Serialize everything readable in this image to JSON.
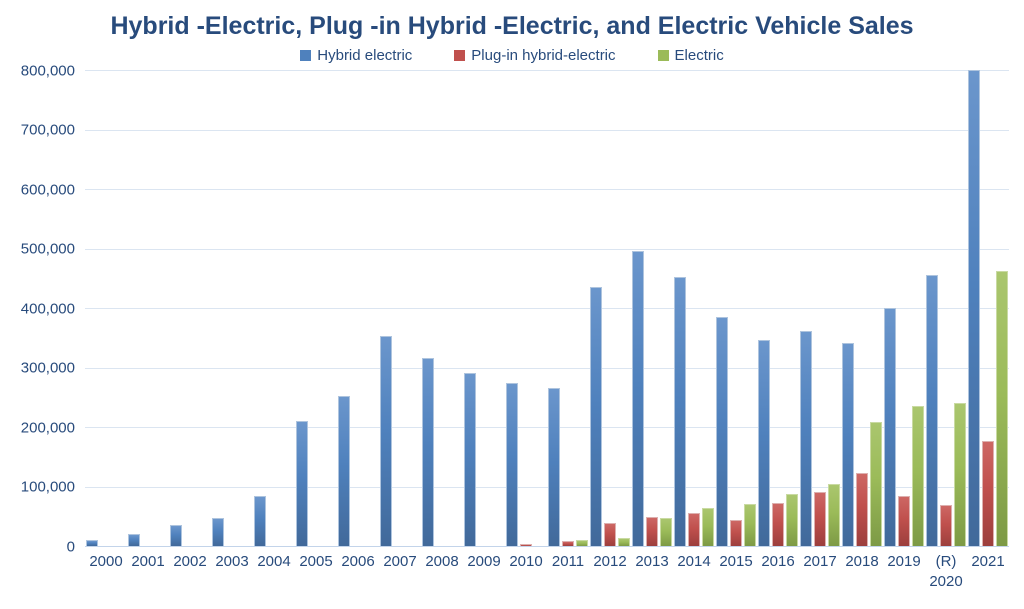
{
  "chart_data": {
    "type": "bar",
    "title": "Hybrid -Electric, Plug -in Hybrid -Electric, and Electric Vehicle Sales",
    "categories": [
      "2000",
      "2001",
      "2002",
      "2003",
      "2004",
      "2005",
      "2006",
      "2007",
      "2008",
      "2009",
      "2010",
      "2011",
      "2012",
      "2013",
      "2014",
      "2015",
      "2016",
      "2017",
      "2018",
      "2019",
      "(R)\n2020",
      "2021"
    ],
    "series": [
      {
        "name": "Hybrid electric",
        "color": "#4f81bd",
        "values": [
          9350,
          20287,
          36035,
          47600,
          84199,
          209711,
          252636,
          352274,
          315761,
          290271,
          274210,
          266329,
          434498,
          495771,
          452152,
          384404,
          346948,
          362035,
          341310,
          400746,
          455313,
          801550
        ]
      },
      {
        "name": "Plug-in hybrid-electric",
        "color": "#c0504d",
        "values": [
          0,
          0,
          0,
          0,
          0,
          0,
          0,
          0,
          0,
          0,
          326,
          7671,
          38584,
          49008,
          55357,
          42959,
          72885,
          90732,
          122844,
          84800,
          69074,
          175895
        ]
      },
      {
        "name": "Electric",
        "color": "#9bbb59",
        "values": [
          0,
          0,
          0,
          0,
          0,
          0,
          0,
          0,
          0,
          0,
          0,
          10092,
          14251,
          47694,
          63416,
          71044,
          86731,
          104487,
          208277,
          235000,
          239932,
          462000
        ]
      }
    ],
    "ylim": [
      0,
      800000
    ],
    "y_ticks": [
      {
        "value": 800000,
        "label": "800,000"
      },
      {
        "value": 700000,
        "label": "700,000"
      },
      {
        "value": 600000,
        "label": "600,000"
      },
      {
        "value": 500000,
        "label": "500,000"
      },
      {
        "value": 400000,
        "label": "400,000"
      },
      {
        "value": 300000,
        "label": "300,000"
      },
      {
        "value": 200000,
        "label": "200,000"
      },
      {
        "value": 100000,
        "label": "100,000"
      },
      {
        "value": 0,
        "label": "0"
      }
    ],
    "grid": true,
    "legend_position": "top-center",
    "text_color": "#284b7c",
    "gridline_color": "#dbe5f1",
    "background_color": "#ffffff"
  }
}
